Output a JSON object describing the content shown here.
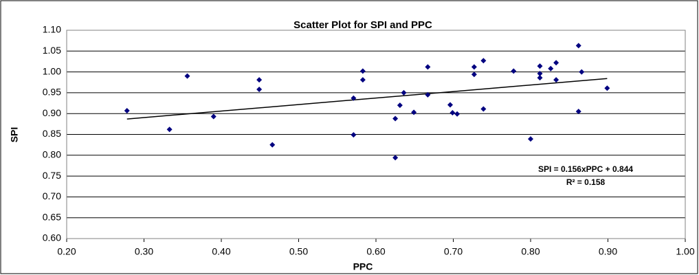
{
  "chart_data": {
    "type": "scatter",
    "title": "Scatter Plot for SPI and PPC",
    "x_label": "PPC",
    "y_label": "SPI",
    "series": [
      {
        "name": "SPI",
        "color": "#000080",
        "x": [
          0.278,
          0.333,
          0.356,
          0.39,
          0.449,
          0.449,
          0.466,
          0.571,
          0.571,
          0.583,
          0.583,
          0.625,
          0.625,
          0.631,
          0.636,
          0.649,
          0.667,
          0.667,
          0.696,
          0.699,
          0.705,
          0.727,
          0.727,
          0.739,
          0.739,
          0.778,
          0.8,
          0.812,
          0.812,
          0.812,
          0.826,
          0.833,
          0.833,
          0.862,
          0.862,
          0.866,
          0.899
        ],
        "values": [
          0.907,
          0.862,
          0.99,
          0.893,
          0.981,
          0.958,
          0.825,
          0.937,
          0.849,
          1.002,
          0.981,
          0.888,
          0.794,
          0.92,
          0.95,
          0.903,
          0.945,
          1.012,
          0.921,
          0.902,
          0.899,
          1.012,
          0.994,
          1.027,
          0.911,
          1.002,
          0.839,
          1.014,
          0.996,
          0.986,
          1.008,
          1.022,
          0.981,
          1.063,
          0.905,
          1.0,
          0.961
        ]
      }
    ],
    "trendline": {
      "color": "#000000",
      "x": [
        0.278,
        0.899
      ],
      "values": [
        0.887,
        0.984
      ]
    },
    "annotations": [
      "SPI = 0.156xPPC + 0.844",
      "R² = 0.158"
    ],
    "xlim": [
      0.2,
      1.0
    ],
    "xticks": [
      {
        "value": 0.2,
        "label": "0.20"
      },
      {
        "value": 0.3,
        "label": "0.30"
      },
      {
        "value": 0.4,
        "label": "0.40"
      },
      {
        "value": 0.5,
        "label": "0.50"
      },
      {
        "value": 0.6,
        "label": "0.60"
      },
      {
        "value": 0.7,
        "label": "0.70"
      },
      {
        "value": 0.8,
        "label": "0.80"
      },
      {
        "value": 0.9,
        "label": "0.90"
      },
      {
        "value": 1.0,
        "label": "1.00"
      }
    ],
    "ylim": [
      0.6,
      1.1
    ],
    "yticks": [
      {
        "value": 0.6,
        "label": "0.60"
      },
      {
        "value": 0.65,
        "label": "0.65"
      },
      {
        "value": 0.7,
        "label": "0.70"
      },
      {
        "value": 0.75,
        "label": "0.75"
      },
      {
        "value": 0.8,
        "label": "0.80"
      },
      {
        "value": 0.85,
        "label": "0.85"
      },
      {
        "value": 0.9,
        "label": "0.90"
      },
      {
        "value": 0.95,
        "label": "0.95"
      },
      {
        "value": 1.0,
        "label": "1.00"
      },
      {
        "value": 1.05,
        "label": "1.05"
      },
      {
        "value": 1.1,
        "label": "1.10"
      }
    ],
    "grid": true
  }
}
